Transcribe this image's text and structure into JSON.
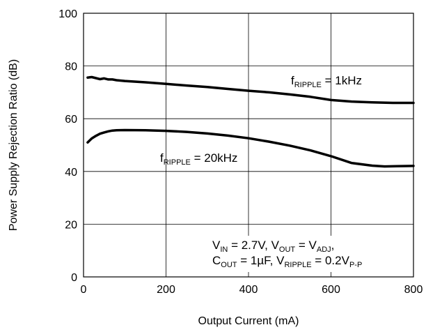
{
  "chart_data": {
    "type": "line",
    "xlabel": "Output Current (mA)",
    "ylabel": "Power Supply Rejection Ratio (dB)",
    "xlim": [
      0,
      800
    ],
    "ylim": [
      0,
      100
    ],
    "x_ticks": [
      "0",
      "200",
      "400",
      "600",
      "800"
    ],
    "y_ticks": [
      "0",
      "20",
      "40",
      "60",
      "80",
      "100"
    ],
    "grid": true,
    "series": [
      {
        "name": "fRIPPLE = 1kHz",
        "label_main": "f",
        "label_sub": "RIPPLE",
        "label_rest": " = 1kHz",
        "x": [
          10,
          20,
          30,
          40,
          50,
          60,
          70,
          80,
          100,
          150,
          200,
          250,
          300,
          350,
          400,
          450,
          500,
          550,
          600,
          650,
          700,
          750,
          800
        ],
        "y": [
          75.6,
          75.8,
          75.4,
          75.0,
          75.3,
          74.9,
          74.9,
          74.6,
          74.3,
          73.8,
          73.2,
          72.6,
          72.0,
          71.3,
          70.6,
          70.0,
          69.2,
          68.3,
          67.1,
          66.5,
          66.2,
          66.0,
          66.0
        ]
      },
      {
        "name": "fRIPPLE = 20kHz",
        "label_main": "f",
        "label_sub": "RIPPLE",
        "label_rest": " = 20kHz",
        "x": [
          10,
          20,
          30,
          40,
          50,
          60,
          70,
          80,
          100,
          150,
          200,
          250,
          300,
          350,
          400,
          450,
          500,
          550,
          600,
          650,
          700,
          730,
          760,
          800
        ],
        "y": [
          51.0,
          52.5,
          53.5,
          54.3,
          54.8,
          55.2,
          55.5,
          55.6,
          55.7,
          55.6,
          55.4,
          55.0,
          54.4,
          53.6,
          52.6,
          51.3,
          49.8,
          48.0,
          45.8,
          43.2,
          42.2,
          41.9,
          42.0,
          42.1
        ]
      }
    ],
    "conditions": {
      "line1": {
        "v": "V",
        "in_sub": "IN",
        "a": " = 2.7V, V",
        "out_sub": "OUT",
        "b": " = V",
        "adj_sub": "ADJ",
        "c": ","
      },
      "line2": {
        "c": "C",
        "cout_sub": "OUT",
        "a": " = 1µF, V",
        "rip_sub": "RIPPLE",
        "b": " = 0.2V",
        "pp_sub": "P-P"
      }
    },
    "colors": {
      "line": "#000000",
      "grid": "#000000",
      "background": "#ffffff"
    }
  }
}
